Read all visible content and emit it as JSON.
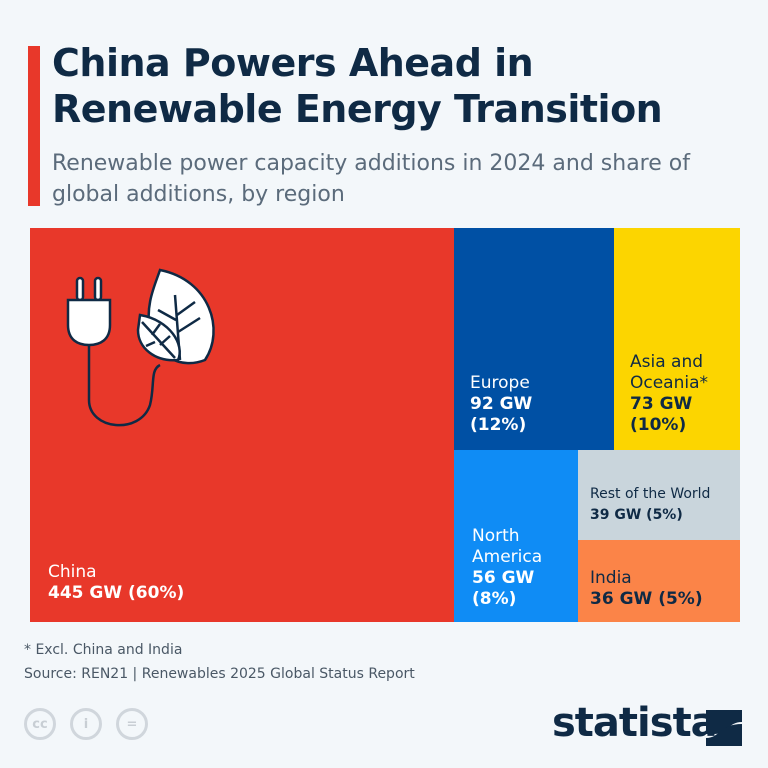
{
  "header": {
    "title": "China Powers Ahead in Renewable Energy Transition",
    "subtitle": "Renewable power capacity additions in 2024 and share of global additions, by region"
  },
  "chart_data": {
    "type": "treemap",
    "title": "China Powers Ahead in Renewable Energy Transition",
    "unit": "GW",
    "items": [
      {
        "name": "China",
        "value": 445,
        "share": 60,
        "label": "445 GW (60%)",
        "color": "#e8382a",
        "text_color": "#ffffff"
      },
      {
        "name": "Europe",
        "value": 92,
        "share": 12,
        "label": "92 GW (12%)",
        "color": "#0050a4",
        "text_color": "#ffffff"
      },
      {
        "name": "Asia and Oceania*",
        "value": 73,
        "share": 10,
        "label": "73 GW (10%)",
        "color": "#fcd500",
        "text_color": "#0f2a45"
      },
      {
        "name": "North America",
        "value": 56,
        "share": 8,
        "label": "56 GW (8%)",
        "color": "#0f8cf5",
        "text_color": "#ffffff"
      },
      {
        "name": "Rest of the World",
        "value": 39,
        "share": 5,
        "label": "39 GW (5%)",
        "color": "#c9d5dc",
        "text_color": "#0f2a45"
      },
      {
        "name": "India",
        "value": 36,
        "share": 5,
        "label": "36 GW (5%)",
        "color": "#fb8448",
        "text_color": "#0f2a45"
      }
    ]
  },
  "footer": {
    "note": "* Excl. China and India",
    "source": "Source: REN21 | Renewables 2025 Global Status Report",
    "logo": "statista",
    "cc": [
      "cc",
      "i",
      "="
    ]
  }
}
